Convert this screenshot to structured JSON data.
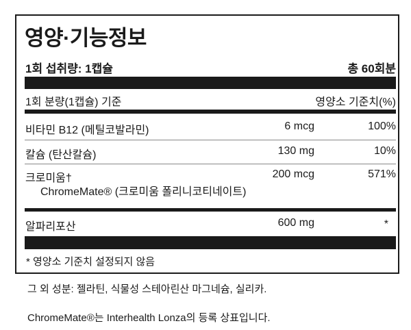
{
  "title": "영양·기능정보",
  "serving": {
    "size": "1회 섭취량: 1캡슐",
    "total": "총 60회분"
  },
  "header": {
    "basis": "1회 분량(1캡슐) 기준",
    "dv": "영양소 기준치(%)"
  },
  "rows": [
    {
      "name": "비타민 B12 (메틸코발라민)",
      "amount": "6 mcg",
      "dv": "100%"
    },
    {
      "name": "칼슘 (탄산칼슘)",
      "amount": "130 mg",
      "dv": "10%"
    },
    {
      "name": "크로미움†",
      "sub": "ChromeMate® (크로미움 폴리니코티네이트)",
      "amount": "200 mcg",
      "dv": "571%"
    },
    {
      "name": "알파리포산",
      "amount": "600 mg",
      "dv": "*"
    }
  ],
  "footnote": "* 영양소 기준치 설정되지 않음",
  "other_ingredients": "그 외 성분: 젤라틴, 식물성 스테아린산 마그네슘, 실리카.",
  "trademark": "ChromeMate®는 Interhealth Lonza의 등록 상표입니다."
}
